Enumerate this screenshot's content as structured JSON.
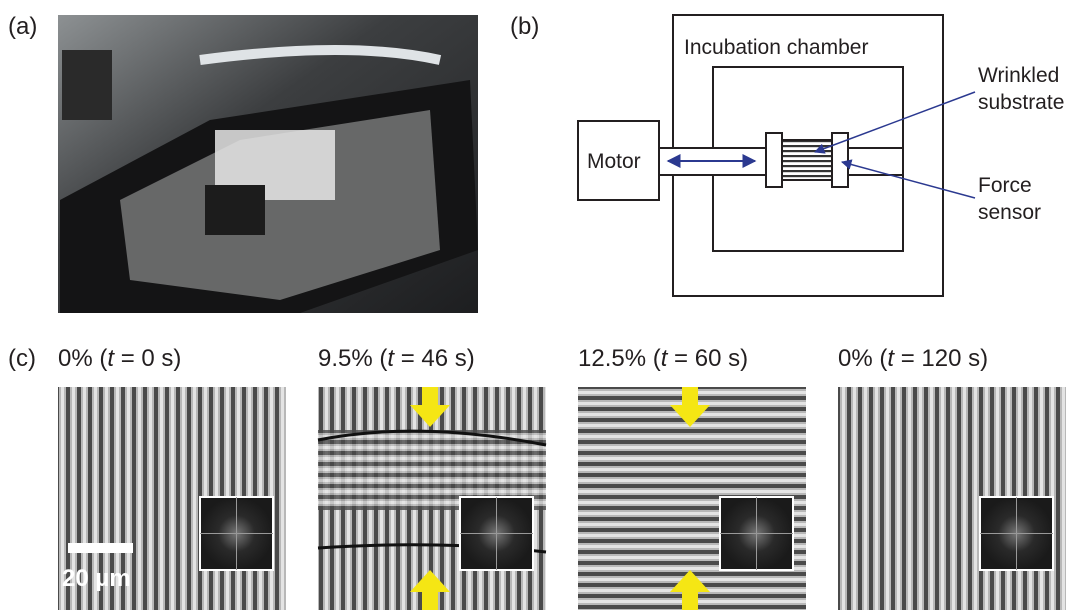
{
  "panels": {
    "a": {
      "label": "(a)"
    },
    "b": {
      "label": "(b)",
      "chamber": "Incubation chamber",
      "motor": "Motor",
      "substrate": [
        "Wrinkled",
        "substrate"
      ],
      "sensor": [
        "Force",
        "sensor"
      ]
    },
    "c": {
      "label": "(c)",
      "scale_bar": "20 µm",
      "frames": [
        {
          "pre": "0% (",
          "var": "t",
          "post": " = 0 s)"
        },
        {
          "pre": "9.5% (",
          "var": "t",
          "post": " = 46 s)"
        },
        {
          "pre": "12.5% (",
          "var": "t",
          "post": " = 60 s)"
        },
        {
          "pre": "0% (",
          "var": "t",
          "post": " = 120 s)"
        }
      ]
    }
  }
}
